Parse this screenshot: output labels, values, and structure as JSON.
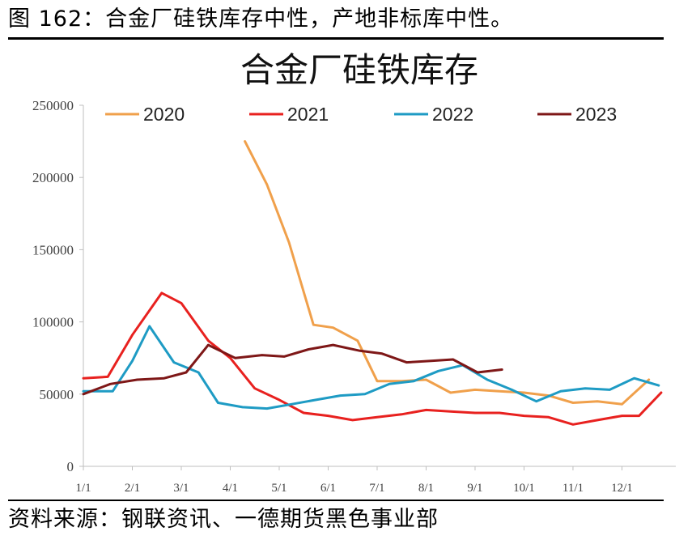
{
  "caption": "图 162：合金厂硅铁库存中性，产地非标库中性。",
  "source": "资料来源：钢联资讯、一德期货黑色事业部",
  "chart_data": {
    "type": "line",
    "title": "合金厂硅铁库存",
    "xlabel": "",
    "ylabel": "",
    "ylim": [
      0,
      250000
    ],
    "yticks": [
      0,
      50000,
      100000,
      150000,
      200000,
      250000
    ],
    "ytick_labels": [
      "0",
      "50000",
      "100000",
      "150000",
      "200000",
      "250000"
    ],
    "xlim": [
      1,
      13.1
    ],
    "xticks": [
      1,
      2,
      3,
      4,
      5,
      6,
      7,
      8,
      9,
      10,
      11,
      12
    ],
    "xtick_labels": [
      "1/1",
      "2/1",
      "3/1",
      "4/1",
      "5/1",
      "6/1",
      "7/1",
      "8/1",
      "9/1",
      "10/1",
      "11/1",
      "12/1"
    ],
    "grid": false,
    "legend_position": "top",
    "series": [
      {
        "name": "2020",
        "color": "#F0A04B",
        "x": [
          4.3,
          4.75,
          5.2,
          5.7,
          6.1,
          6.6,
          7.0,
          7.5,
          8.0,
          8.5,
          9.0,
          9.5,
          10.0,
          10.5,
          11.0,
          11.5,
          12.0,
          12.55
        ],
        "y": [
          225000,
          195000,
          155000,
          98000,
          96000,
          87000,
          59000,
          59000,
          60000,
          51000,
          53000,
          52000,
          51000,
          49000,
          44000,
          45000,
          43000,
          60000
        ]
      },
      {
        "name": "2021",
        "color": "#E8211F",
        "x": [
          1.0,
          1.5,
          2.0,
          2.6,
          3.0,
          3.55,
          4.0,
          4.5,
          5.0,
          5.5,
          6.0,
          6.5,
          7.0,
          7.5,
          8.0,
          8.5,
          9.0,
          9.5,
          10.0,
          10.5,
          11.0,
          11.5,
          12.0,
          12.35,
          12.8
        ],
        "y": [
          61000,
          62000,
          91000,
          120000,
          113000,
          87000,
          75000,
          54000,
          46000,
          37000,
          35000,
          32000,
          34000,
          36000,
          39000,
          38000,
          37000,
          37000,
          35000,
          34000,
          29000,
          32000,
          35000,
          35000,
          51000
        ]
      },
      {
        "name": "2022",
        "color": "#1E9BC4",
        "x": [
          1.0,
          1.6,
          2.0,
          2.35,
          2.85,
          3.35,
          3.75,
          4.25,
          4.75,
          5.25,
          5.75,
          6.25,
          6.75,
          7.25,
          7.75,
          8.25,
          8.75,
          9.25,
          9.75,
          10.25,
          10.75,
          11.25,
          11.75,
          12.25,
          12.75
        ],
        "y": [
          52000,
          52000,
          73000,
          97000,
          72000,
          65000,
          44000,
          41000,
          40000,
          43000,
          46000,
          49000,
          50000,
          57000,
          59000,
          66000,
          70000,
          60000,
          53000,
          45000,
          52000,
          54000,
          53000,
          61000,
          56000
        ]
      },
      {
        "name": "2023",
        "color": "#7E1717",
        "x": [
          1.0,
          1.55,
          2.1,
          2.65,
          3.1,
          3.55,
          4.1,
          4.65,
          5.1,
          5.6,
          6.1,
          6.65,
          7.1,
          7.6,
          8.1,
          8.55,
          9.05,
          9.55
        ],
        "y": [
          50000,
          57000,
          60000,
          61000,
          65000,
          84000,
          75000,
          77000,
          76000,
          81000,
          84000,
          80000,
          78000,
          72000,
          73000,
          74000,
          65000,
          67000
        ]
      }
    ]
  }
}
